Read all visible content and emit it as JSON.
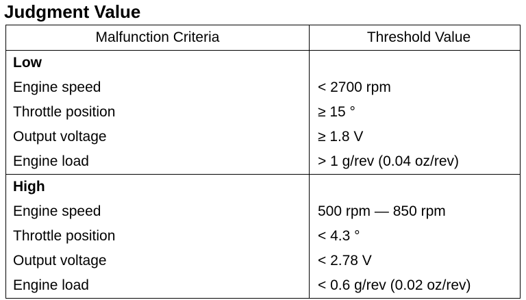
{
  "title": "Judgment Value",
  "table": {
    "header": [
      "Malfunction Criteria",
      "Threshold Value"
    ],
    "groups": [
      {
        "label": "Low",
        "rows": [
          [
            "Engine speed",
            "< 2700 rpm"
          ],
          [
            "Throttle position",
            "≥ 15 °"
          ],
          [
            "Output voltage",
            "≥ 1.8 V"
          ],
          [
            "Engine load",
            "> 1 g/rev (0.04 oz/rev)"
          ]
        ]
      },
      {
        "label": "High",
        "rows": [
          [
            "Engine speed",
            "500 rpm — 850 rpm"
          ],
          [
            "Throttle position",
            "< 4.3 °"
          ],
          [
            "Output voltage",
            "< 2.78 V"
          ],
          [
            "Engine load",
            "< 0.6 g/rev (0.02 oz/rev)"
          ]
        ]
      }
    ]
  }
}
